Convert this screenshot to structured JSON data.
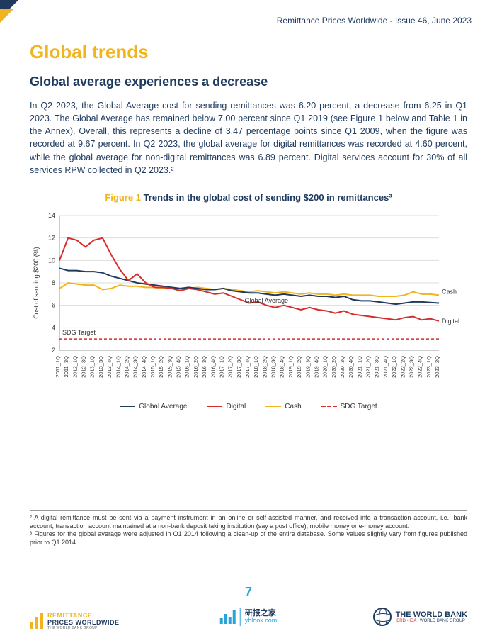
{
  "header": {
    "right": "Remittance Prices Worldwide - Issue 46, June 2023"
  },
  "title": "Global trends",
  "subtitle": "Global average experiences a decrease",
  "paragraph": "In Q2 2023, the Global Average cost for sending remittances was 6.20 percent, a decrease from 6.25 in Q1 2023. The Global Average has remained below 7.00 percent since Q1 2019 (see Figure 1 below and Table 1 in the Annex). Overall, this represents a decline of 3.47 percentage points since Q1 2009, when the figure was recorded at 9.67 percent. In Q2 2023, the global average for digital remittances was recorded at 4.60 percent, while the global average for non-digital remittances was 6.89 percent. Digital services account for 30% of all services RPW collected in Q2 2023.²",
  "figure": {
    "label": "Figure 1",
    "caption": "Trends in the global cost of sending $200 in remittances³",
    "type": "line",
    "ylabel": "Cost of sending $200 (%)",
    "ylim": [
      2,
      14
    ],
    "ytick_step": 2,
    "xlabels": [
      "2011_1Q",
      "2011_3Q",
      "2012_1Q",
      "2012_3Q",
      "2013_1Q",
      "2013_3Q",
      "2013_4Q",
      "2014_1Q",
      "2014_2Q",
      "2014_3Q",
      "2014_4Q",
      "2015_1Q",
      "2015_2Q",
      "2015_3Q",
      "2015_4Q",
      "2016_1Q",
      "2016_2Q",
      "2016_3Q",
      "2016_4Q",
      "2017_1Q",
      "2017_2Q",
      "2017_3Q",
      "2017_4Q",
      "2018_1Q",
      "2018_2Q",
      "2018_3Q",
      "2018_4Q",
      "2019_1Q",
      "2019_2Q",
      "2019_3Q",
      "2019_4Q",
      "2020_1Q",
      "2020_2Q",
      "2020_3Q",
      "2020_4Q",
      "2021_1Q",
      "2021_2Q",
      "2021_3Q",
      "2021_4Q",
      "2022_1Q",
      "2022_2Q",
      "2022_3Q",
      "2022_4Q",
      "2023_1Q",
      "2023_2Q"
    ],
    "series": {
      "global_avg": {
        "label": "Global Average",
        "color": "#1f3a5f",
        "width": 2,
        "dash": "none",
        "values": [
          9.3,
          9.1,
          9.1,
          9.0,
          9.0,
          8.9,
          8.6,
          8.4,
          8.2,
          8.0,
          7.9,
          7.8,
          7.7,
          7.6,
          7.5,
          7.6,
          7.5,
          7.4,
          7.4,
          7.5,
          7.3,
          7.2,
          7.1,
          7.1,
          7.0,
          6.9,
          7.0,
          6.9,
          6.8,
          6.9,
          6.8,
          6.8,
          6.7,
          6.8,
          6.5,
          6.4,
          6.4,
          6.3,
          6.2,
          6.1,
          6.2,
          6.3,
          6.3,
          6.25,
          6.2
        ]
      },
      "digital": {
        "label": "Digital",
        "color": "#d62c2c",
        "width": 2,
        "dash": "none",
        "values": [
          10.0,
          12.0,
          11.8,
          11.2,
          11.8,
          12.0,
          10.5,
          9.2,
          8.2,
          8.8,
          8.0,
          7.6,
          7.6,
          7.5,
          7.3,
          7.5,
          7.4,
          7.2,
          7.0,
          7.1,
          6.8,
          6.5,
          6.2,
          6.3,
          6.0,
          5.8,
          6.0,
          5.8,
          5.6,
          5.8,
          5.6,
          5.5,
          5.3,
          5.5,
          5.2,
          5.1,
          5.0,
          4.9,
          4.8,
          4.7,
          4.9,
          5.0,
          4.7,
          4.8,
          4.6
        ]
      },
      "cash": {
        "label": "Cash",
        "color": "#f2b41c",
        "width": 2,
        "dash": "none",
        "values": [
          7.5,
          8.0,
          7.9,
          7.8,
          7.8,
          7.4,
          7.5,
          7.8,
          7.7,
          7.7,
          7.6,
          7.6,
          7.5,
          7.5,
          7.4,
          7.5,
          7.6,
          7.5,
          7.4,
          7.5,
          7.4,
          7.3,
          7.2,
          7.3,
          7.2,
          7.1,
          7.2,
          7.1,
          7.0,
          7.1,
          7.0,
          7.0,
          6.9,
          7.0,
          6.9,
          6.9,
          6.9,
          6.8,
          6.8,
          6.8,
          6.9,
          7.2,
          7.0,
          7.0,
          6.9
        ]
      },
      "sdg": {
        "label": "SDG Target",
        "color": "#d62c2c",
        "width": 1.5,
        "dash": "4,3",
        "values": [
          3,
          3,
          3,
          3,
          3,
          3,
          3,
          3,
          3,
          3,
          3,
          3,
          3,
          3,
          3,
          3,
          3,
          3,
          3,
          3,
          3,
          3,
          3,
          3,
          3,
          3,
          3,
          3,
          3,
          3,
          3,
          3,
          3,
          3,
          3,
          3,
          3,
          3,
          3,
          3,
          3,
          3,
          3,
          3,
          3
        ]
      }
    },
    "annotations": {
      "cash": "Cash",
      "global": "Global Average",
      "digital": "Digital",
      "sdg": "SDG Target"
    },
    "background_color": "#ffffff",
    "grid_color": "#dddddd",
    "axis_font_size": 9
  },
  "legend": [
    {
      "label": "Global Average",
      "color": "#1f3a5f",
      "dash": "solid"
    },
    {
      "label": "Digital",
      "color": "#d62c2c",
      "dash": "solid"
    },
    {
      "label": "Cash",
      "color": "#f2b41c",
      "dash": "solid"
    },
    {
      "label": "SDG Target",
      "color": "#d62c2c",
      "dash": "dashed"
    }
  ],
  "footnotes": {
    "f2": "² A digital remittance must be sent via a payment instrument in an online or self-assisted manner, and received into a transaction account, i.e., bank account, transaction account maintained at a non-bank deposit taking institution (say a post office), mobile money or e-money account.",
    "f3": "³ Figures for the global average were adjusted in Q1 2014 following a clean-up of the entire database. Some values slightly vary from figures published prior to Q1 2014."
  },
  "page_number": "7",
  "logo_left": {
    "line1": "REMITTANCE",
    "line2": "PRICES WORLDWIDE",
    "line3": "THE WORLD BANK GROUP"
  },
  "logo_right": {
    "line1": "THE WORLD BANK",
    "line2a": "IBRD • IDA",
    "line2b": " | WORLD BANK GROUP"
  },
  "watermark": {
    "line1": "研报之家",
    "line2": "yblook.com"
  }
}
